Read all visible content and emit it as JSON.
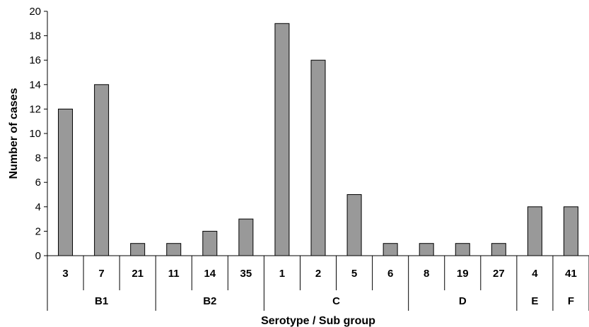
{
  "chart_data": {
    "type": "bar",
    "xlabel": "Serotype / Sub group",
    "ylabel": "Number of cases",
    "ylim": [
      0,
      20
    ],
    "ytick_step": 2,
    "yticks": [
      "0",
      "2",
      "4",
      "6",
      "8",
      "10",
      "12",
      "14",
      "16",
      "18",
      "20"
    ],
    "categories": [
      "3",
      "7",
      "21",
      "11",
      "14",
      "35",
      "1",
      "2",
      "5",
      "6",
      "8",
      "19",
      "27",
      "4",
      "41"
    ],
    "values": [
      12,
      14,
      1,
      1,
      2,
      3,
      19,
      16,
      5,
      1,
      1,
      1,
      1,
      4,
      4
    ],
    "groups": [
      {
        "label": "B1",
        "count": 3
      },
      {
        "label": "B2",
        "count": 3
      },
      {
        "label": "C",
        "count": 4
      },
      {
        "label": "D",
        "count": 3
      },
      {
        "label": "E",
        "count": 1
      },
      {
        "label": "F",
        "count": 1
      }
    ],
    "bar_color": "#999999",
    "grid": false,
    "legend": "none"
  }
}
